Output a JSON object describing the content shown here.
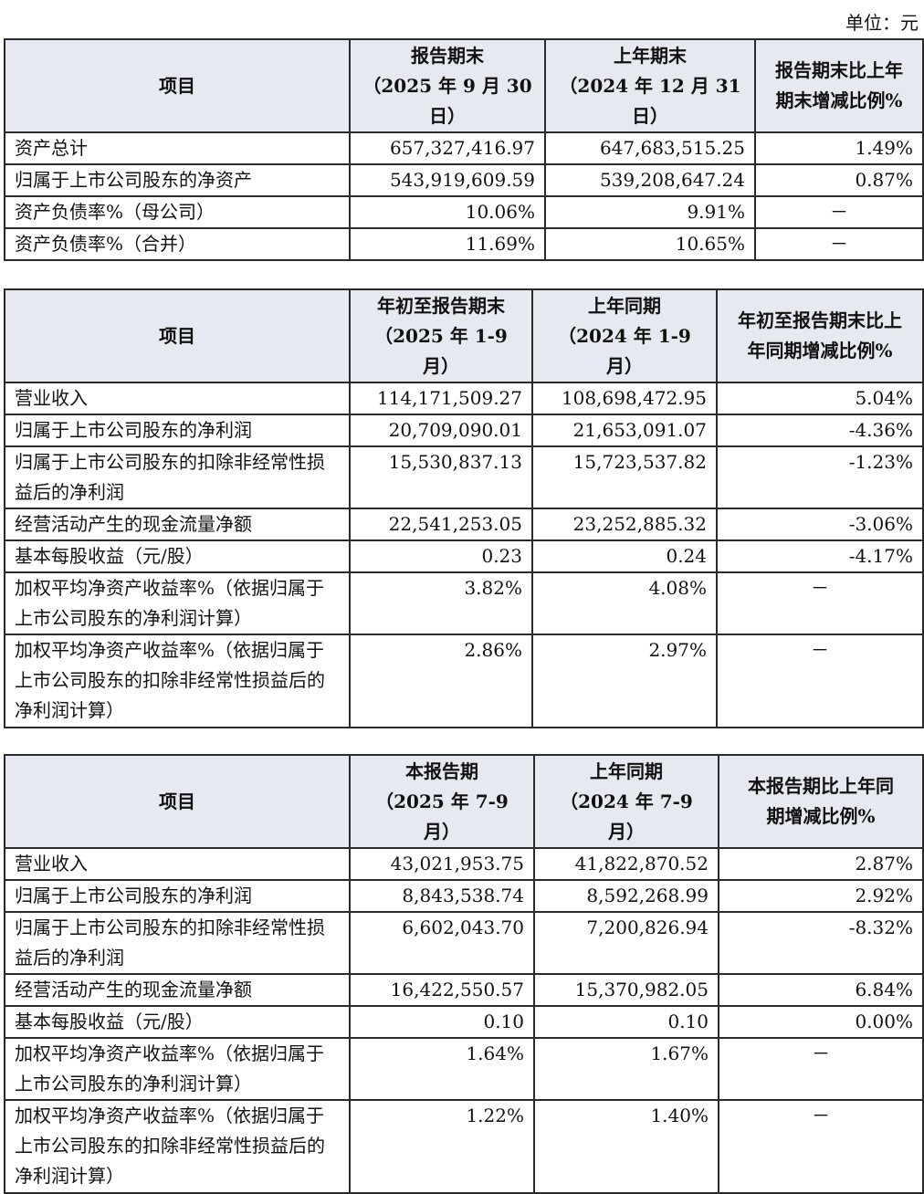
{
  "unit_label": "单位：元",
  "table1": {
    "headers": [
      {
        "lines": [
          "项目"
        ]
      },
      {
        "lines": [
          "报告期末",
          "（2025 年 9 月 30",
          "日）"
        ]
      },
      {
        "lines": [
          "上年期末",
          "（2024 年 12 月 31",
          "日）"
        ]
      },
      {
        "lines": [
          "报告期末比上年",
          "期末增减比例%"
        ]
      }
    ],
    "rows": [
      {
        "label": "资产总计",
        "current": "657,327,416.97",
        "prior": "647,683,515.25",
        "change": "1.49%"
      },
      {
        "label": "归属于上市公司股东的净资产",
        "current": "543,919,609.59",
        "prior": "539,208,647.24",
        "change": "0.87%"
      },
      {
        "label": "资产负债率%（母公司）",
        "current": "10.06%",
        "prior": "9.91%",
        "change": "－"
      },
      {
        "label": "资产负债率%（合并）",
        "current": "11.69%",
        "prior": "10.65%",
        "change": "－"
      }
    ]
  },
  "table2": {
    "headers": [
      {
        "lines": [
          "项目"
        ]
      },
      {
        "lines": [
          "年初至报告期末",
          "（2025 年 1-9",
          "月）"
        ]
      },
      {
        "lines": [
          "上年同期",
          "（2024 年 1-9",
          "月）"
        ]
      },
      {
        "lines": [
          "年初至报告期末比上",
          "年同期增减比例%"
        ]
      }
    ],
    "rows": [
      {
        "label": "营业收入",
        "current": "114,171,509.27",
        "prior": "108,698,472.95",
        "change": "5.04%"
      },
      {
        "label": "归属于上市公司股东的净利润",
        "current": "20,709,090.01",
        "prior": "21,653,091.07",
        "change": "-4.36%"
      },
      {
        "label": "归属于上市公司股东的扣除非经常性损益后的净利润",
        "current": "15,530,837.13",
        "prior": "15,723,537.82",
        "change": "-1.23%"
      },
      {
        "label": "经营活动产生的现金流量净额",
        "current": "22,541,253.05",
        "prior": "23,252,885.32",
        "change": "-3.06%"
      },
      {
        "label": "基本每股收益（元/股）",
        "current": "0.23",
        "prior": "0.24",
        "change": "-4.17%"
      },
      {
        "label": "加权平均净资产收益率%（依据归属于上市公司股东的净利润计算）",
        "current": "3.82%",
        "prior": "4.08%",
        "change": "－"
      },
      {
        "label": "加权平均净资产收益率%（依据归属于上市公司股东的扣除非经常性损益后的净利润计算）",
        "current": "2.86%",
        "prior": "2.97%",
        "change": "－"
      }
    ]
  },
  "table3": {
    "headers": [
      {
        "lines": [
          "项目"
        ]
      },
      {
        "lines": [
          "本报告期",
          "（2025 年 7-9",
          "月）"
        ]
      },
      {
        "lines": [
          "上年同期",
          "（2024 年 7-9",
          "月）"
        ]
      },
      {
        "lines": [
          "本报告期比上年同",
          "期增减比例%"
        ]
      }
    ],
    "rows": [
      {
        "label": "营业收入",
        "current": "43,021,953.75",
        "prior": "41,822,870.52",
        "change": "2.87%"
      },
      {
        "label": "归属于上市公司股东的净利润",
        "current": "8,843,538.74",
        "prior": "8,592,268.99",
        "change": "2.92%"
      },
      {
        "label": "归属于上市公司股东的扣除非经常性损益后的净利润",
        "current": "6,602,043.70",
        "prior": "7,200,826.94",
        "change": "-8.32%"
      },
      {
        "label": "经营活动产生的现金流量净额",
        "current": "16,422,550.57",
        "prior": "15,370,982.05",
        "change": "6.84%"
      },
      {
        "label": "基本每股收益（元/股）",
        "current": "0.10",
        "prior": "0.10",
        "change": "0.00%"
      },
      {
        "label": "加权平均净资产收益率%（依据归属于上市公司股东的净利润计算）",
        "current": "1.64%",
        "prior": "1.67%",
        "change": "－"
      },
      {
        "label": "加权平均净资产收益率%（依据归属于上市公司股东的扣除非经常性损益后的净利润计算）",
        "current": "1.22%",
        "prior": "1.40%",
        "change": "－"
      }
    ]
  }
}
